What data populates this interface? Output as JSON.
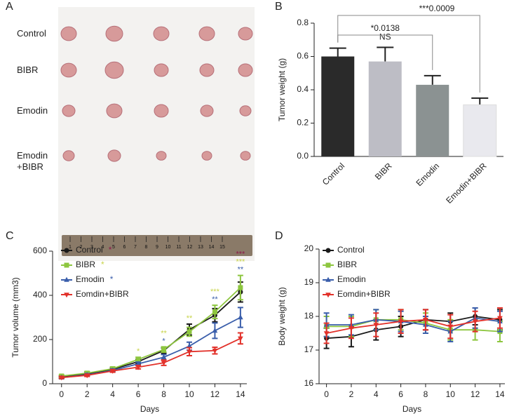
{
  "panel_labels": [
    "A",
    "B",
    "C",
    "D"
  ],
  "photo": {
    "row_labels": [
      "Control",
      "BIBR",
      "Emodin",
      "Emodin +BIBR"
    ],
    "ruler_labels": [
      1,
      2,
      3,
      4,
      5,
      6,
      7,
      8,
      9,
      10,
      11,
      12,
      13,
      14,
      15
    ]
  },
  "chart_data": [
    {
      "type": "bar",
      "y_label": "Tumor weight (g)",
      "categories": [
        "Control",
        "BIBR",
        "Emodin",
        "Emodin+BIBR"
      ],
      "values": [
        0.6,
        0.57,
        0.43,
        0.31
      ],
      "errors": [
        0.05,
        0.085,
        0.055,
        0.04
      ],
      "colors": [
        "#2a2a2a",
        "#bdbdc5",
        "#8b9292",
        "#e9e9ee"
      ],
      "ylim": [
        0,
        0.8
      ],
      "yticks": [
        {
          "value": 0,
          "label": "0.0"
        },
        0.2,
        0.4,
        0.6,
        0.8
      ],
      "annotations": [
        "NS",
        "*0.0138",
        "***0.0009"
      ]
    },
    {
      "type": "line",
      "x_label": "Days",
      "y_label": "Tumor volume (mm3)",
      "x": [
        0,
        2,
        4,
        6,
        8,
        10,
        12,
        14
      ],
      "xlim": [
        -0.7,
        14.5
      ],
      "xticks": [
        0,
        2,
        4,
        6,
        8,
        10,
        12,
        14
      ],
      "ylim": [
        0,
        600
      ],
      "yticks": [
        0,
        200,
        400,
        600
      ],
      "series": [
        {
          "name": "Control",
          "color": "#1a1a1a",
          "marker": "circle",
          "note": "*",
          "note_color": "#8b1a4a",
          "values": [
            30,
            45,
            65,
            100,
            150,
            245,
            310,
            415
          ],
          "errors": [
            5,
            8,
            8,
            10,
            12,
            25,
            30,
            45
          ],
          "significance": [
            null,
            null,
            null,
            null,
            null,
            null,
            null,
            "***"
          ]
        },
        {
          "name": "BIBR",
          "color": "#8dc63f",
          "marker": "square",
          "note": "*",
          "note_color": "#c8d44a",
          "values": [
            35,
            48,
            68,
            110,
            155,
            235,
            325,
            435
          ],
          "errors": [
            5,
            7,
            8,
            10,
            12,
            20,
            30,
            55
          ],
          "significance": [
            null,
            null,
            null,
            "*",
            "**",
            "**",
            "***",
            "***"
          ]
        },
        {
          "name": "Emodin",
          "color": "#3a5eab",
          "marker": "triangle-up",
          "note": "*",
          "note_color": "#3a5eab",
          "values": [
            28,
            40,
            60,
            90,
            120,
            170,
            240,
            300
          ],
          "errors": [
            4,
            6,
            7,
            8,
            12,
            18,
            35,
            45
          ],
          "significance": [
            null,
            null,
            null,
            null,
            "*",
            null,
            "**",
            "**"
          ]
        },
        {
          "name": "Eomdin+BIBR",
          "color": "#e2312a",
          "marker": "triangle-down",
          "values": [
            28,
            38,
            58,
            75,
            95,
            145,
            150,
            205
          ],
          "errors": [
            4,
            5,
            6,
            8,
            12,
            18,
            15,
            25
          ]
        }
      ]
    },
    {
      "type": "line",
      "x_label": "Days",
      "y_label": "Body weight (g)",
      "x": [
        0,
        2,
        4,
        6,
        8,
        10,
        12,
        14
      ],
      "xlim": [
        -0.6,
        14.4
      ],
      "xticks": [
        0,
        2,
        4,
        6,
        8,
        10,
        12,
        14
      ],
      "ylim": [
        16,
        20
      ],
      "yticks": [
        16,
        17,
        18,
        19,
        20
      ],
      "series": [
        {
          "name": "Control",
          "color": "#1a1a1a",
          "marker": "circle",
          "values": [
            17.35,
            17.4,
            17.6,
            17.7,
            17.9,
            17.85,
            18.0,
            17.9
          ],
          "errors": [
            0.3,
            0.3,
            0.3,
            0.3,
            0.3,
            0.25,
            0.25,
            0.3
          ]
        },
        {
          "name": "BIBR",
          "color": "#8dc63f",
          "marker": "square",
          "values": [
            17.7,
            17.7,
            17.9,
            17.9,
            17.8,
            17.6,
            17.6,
            17.55
          ],
          "errors": [
            0.3,
            0.3,
            0.3,
            0.3,
            0.3,
            0.3,
            0.3,
            0.3
          ]
        },
        {
          "name": "Emodin",
          "color": "#3a5eab",
          "marker": "triangle-up",
          "values": [
            17.75,
            17.75,
            17.9,
            17.85,
            17.75,
            17.55,
            17.95,
            17.85
          ],
          "errors": [
            0.35,
            0.3,
            0.3,
            0.3,
            0.25,
            0.3,
            0.3,
            0.3
          ]
        },
        {
          "name": "Eomdin+BIBR",
          "color": "#e2312a",
          "marker": "triangle-down",
          "values": [
            17.5,
            17.65,
            17.75,
            17.85,
            17.9,
            17.7,
            17.85,
            17.95
          ],
          "errors": [
            0.3,
            0.3,
            0.35,
            0.35,
            0.3,
            0.35,
            0.3,
            0.3
          ]
        }
      ]
    }
  ]
}
